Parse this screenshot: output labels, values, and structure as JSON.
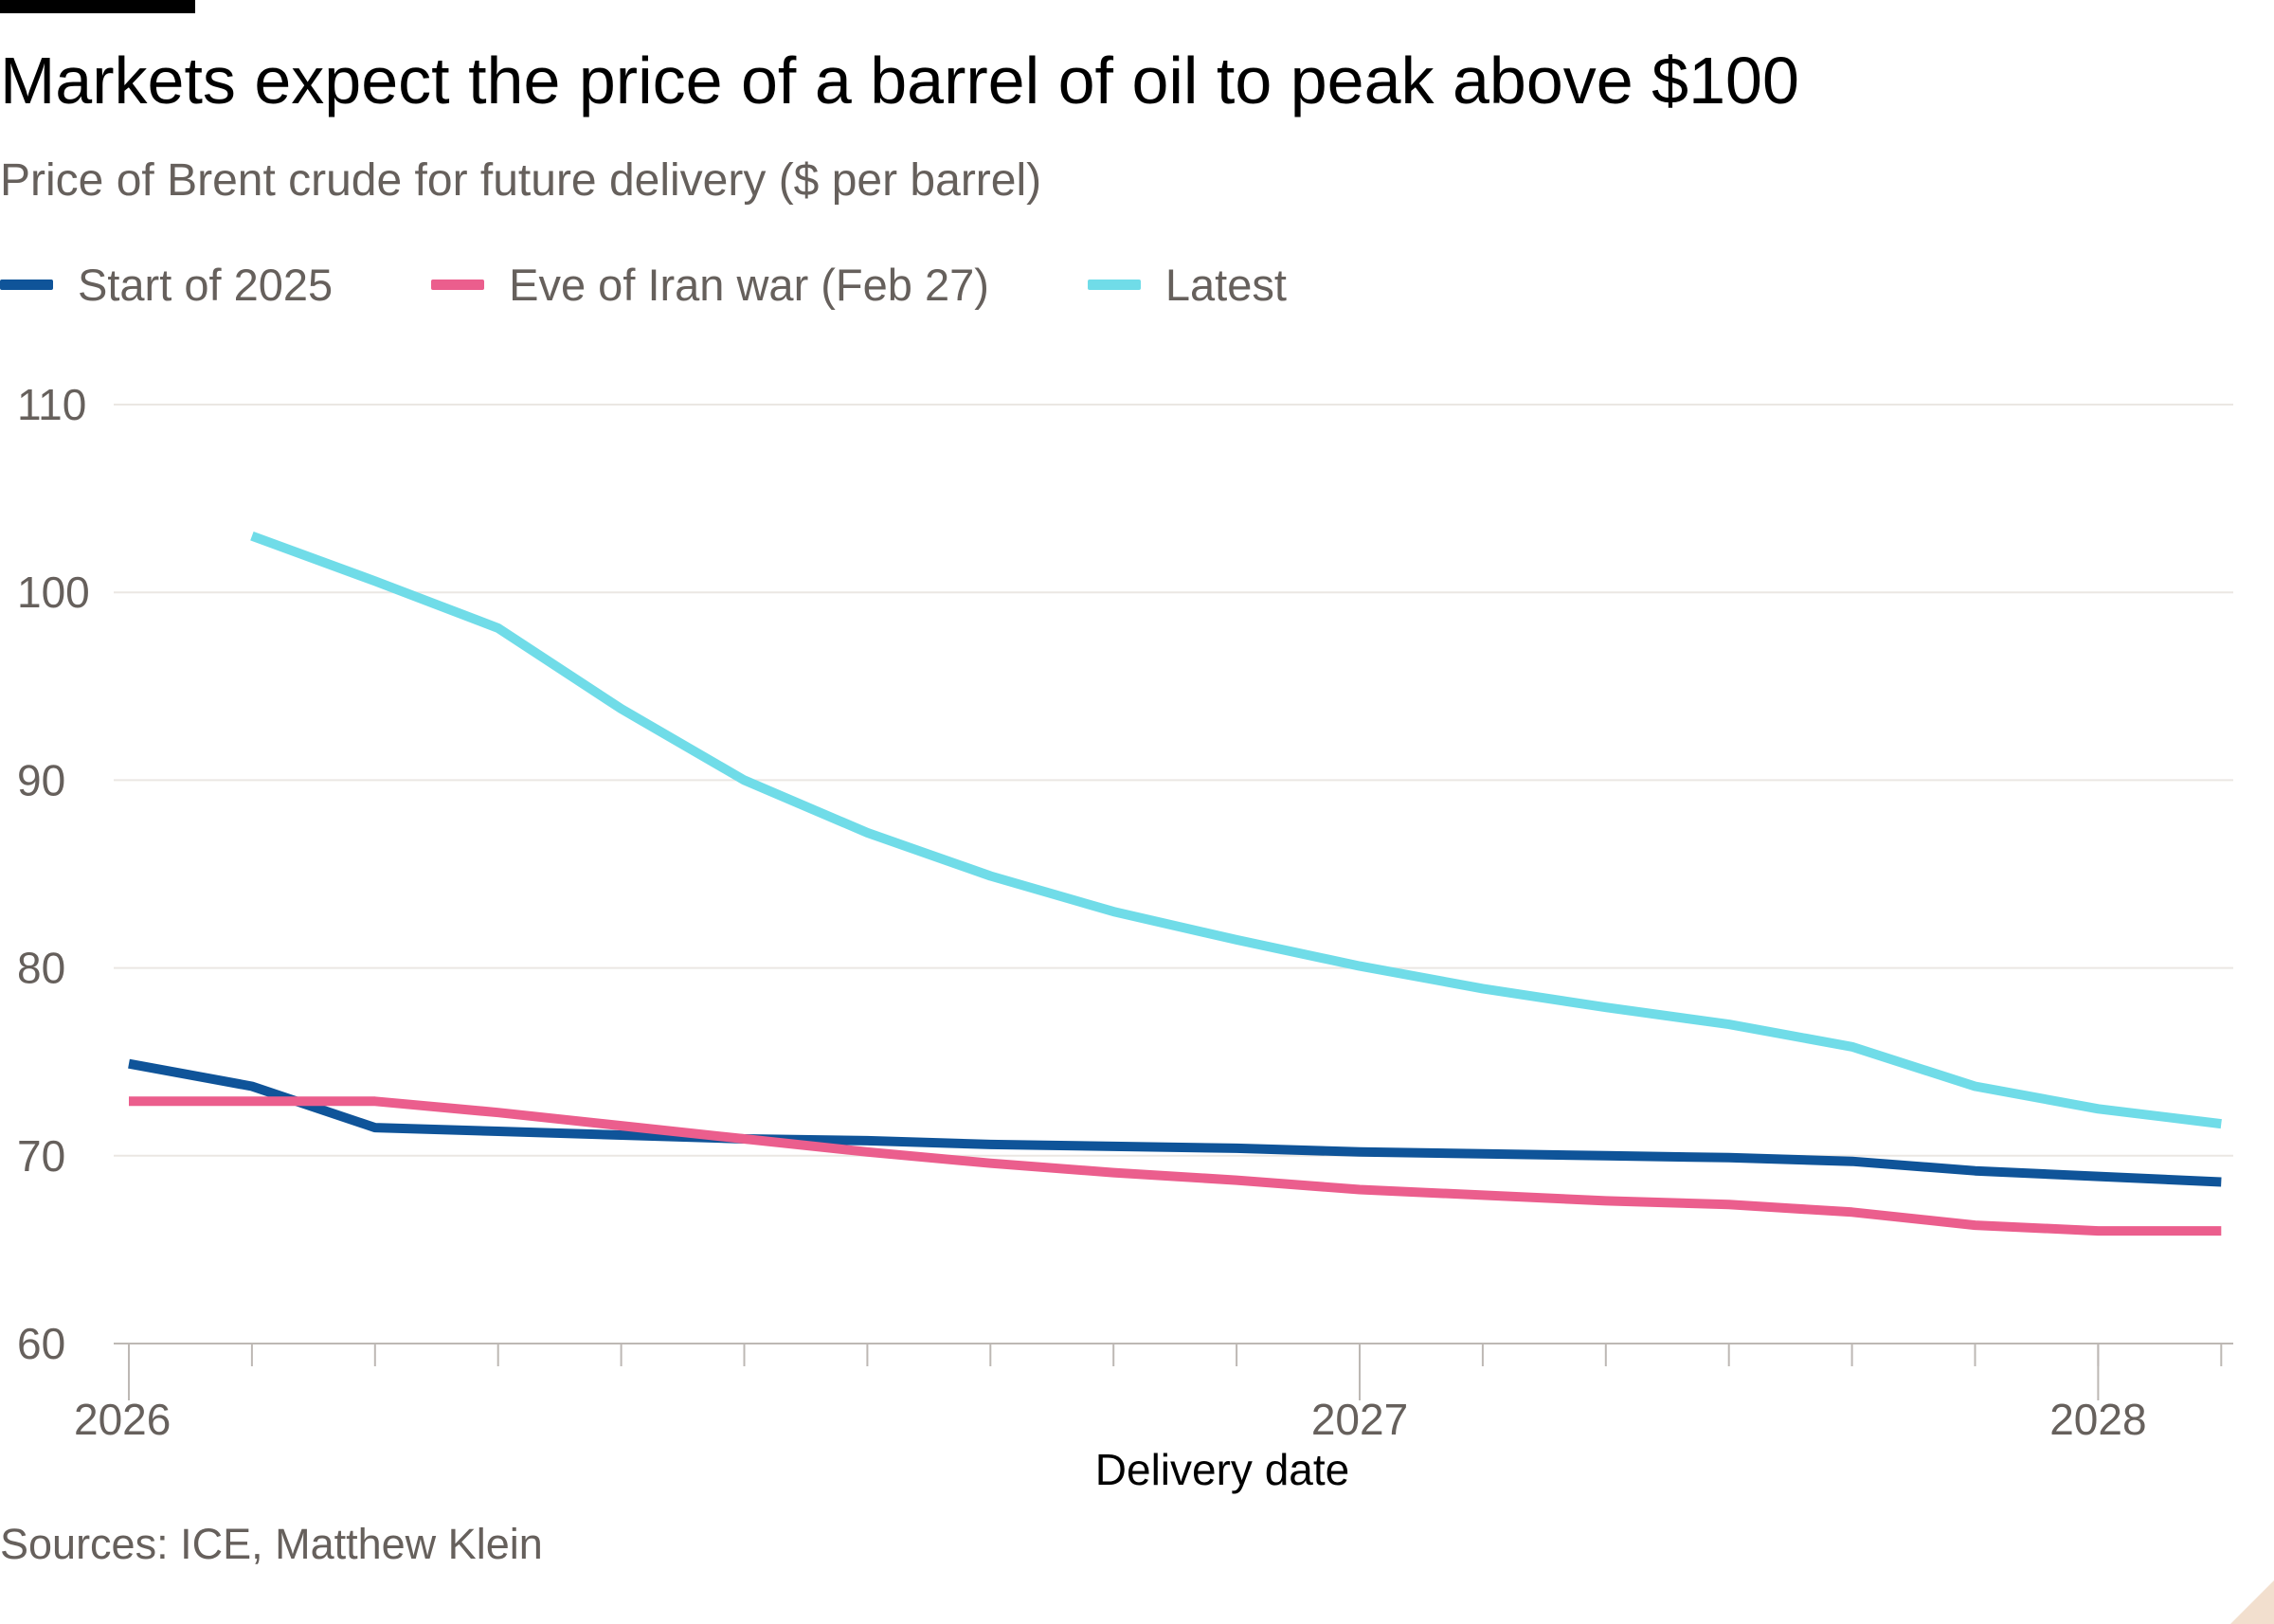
{
  "title": "Markets expect the price of a barrel of oil to peak above $100",
  "subtitle": "Price of Brent crude for future delivery ($ per barrel)",
  "source": "Sources: ICE, Matthew Klein",
  "chart_data": {
    "type": "line",
    "xlabel": "Delivery date",
    "ylabel": "",
    "ylim": [
      60,
      110
    ],
    "yticks": [
      60,
      70,
      80,
      90,
      100,
      110
    ],
    "xlim": [
      0,
      17.2
    ],
    "xticks": [
      {
        "value": 0,
        "label": "2026"
      },
      {
        "value": 10,
        "label": "2027"
      },
      {
        "value": 16,
        "label": "2028"
      }
    ],
    "minor_ticks": [
      0,
      1,
      2,
      3,
      4,
      5,
      6,
      7,
      8,
      9,
      10,
      11,
      12,
      13,
      14,
      15,
      16,
      17
    ],
    "grid": true,
    "legend_position": "top-left",
    "series": [
      {
        "name": "Start of 2025",
        "color": "#0f5499",
        "x": [
          0,
          1,
          2,
          3,
          4,
          5,
          6,
          7,
          8,
          9,
          10,
          11,
          12,
          13,
          14,
          15,
          16,
          17
        ],
        "values": [
          74.9,
          73.7,
          71.5,
          71.3,
          71.1,
          70.9,
          70.8,
          70.6,
          70.5,
          70.4,
          70.2,
          70.1,
          70.0,
          69.9,
          69.7,
          69.2,
          68.9,
          68.6
        ]
      },
      {
        "name": "Eve of Iran war (Feb 27)",
        "color": "#eb5e8d",
        "x": [
          0,
          1,
          2,
          3,
          4,
          5,
          6,
          7,
          8,
          9,
          10,
          11,
          12,
          13,
          14,
          15,
          16,
          17
        ],
        "values": [
          72.9,
          72.9,
          72.9,
          72.3,
          71.6,
          70.9,
          70.2,
          69.6,
          69.1,
          68.7,
          68.2,
          67.9,
          67.6,
          67.4,
          67.0,
          66.3,
          66.0,
          66.0
        ]
      },
      {
        "name": "Latest",
        "color": "#70dce8",
        "x": [
          1,
          2,
          3,
          4,
          5,
          6,
          7,
          8,
          9,
          10,
          11,
          12,
          13,
          14,
          15,
          16,
          17
        ],
        "values": [
          103.0,
          100.6,
          98.1,
          93.8,
          90.0,
          87.2,
          84.9,
          83.0,
          81.5,
          80.1,
          78.9,
          77.9,
          77.0,
          75.8,
          73.7,
          72.5,
          71.7
        ]
      }
    ]
  }
}
